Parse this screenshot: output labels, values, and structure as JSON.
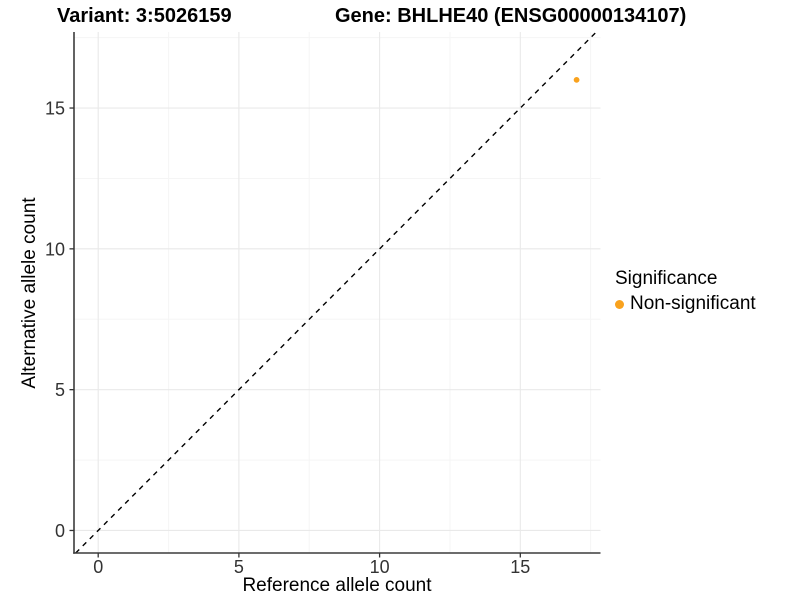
{
  "chart_data": {
    "type": "scatter",
    "title_left": "Variant: 3:5026159",
    "title_right": "Gene: BHLHE40 (ENSG00000134107)",
    "xlabel": "Reference allele count",
    "ylabel": "Alternative allele count",
    "xlim": [
      -0.86,
      17.85
    ],
    "ylim": [
      -0.8,
      17.7
    ],
    "x_ticks": [
      0,
      5,
      10,
      15
    ],
    "y_ticks": [
      0,
      5,
      10,
      15
    ],
    "x_minor_ticks": [
      2.5,
      7.5,
      12.5,
      17.5
    ],
    "y_minor_ticks": [
      2.5,
      7.5,
      12.5,
      17.5
    ],
    "grid": true,
    "reference_line": {
      "type": "identity",
      "style": "dashed",
      "color": "#000000"
    },
    "series": [
      {
        "name": "Non-significant",
        "color": "#F9A21E",
        "points": [
          {
            "x": 17,
            "y": 16
          }
        ]
      }
    ],
    "legend": {
      "title": "Significance",
      "position": "right",
      "items": [
        {
          "label": "Non-significant",
          "color": "#F9A21E"
        }
      ]
    },
    "colors": {
      "axis_line": "#3c3c3c",
      "tick_mark": "#333333",
      "tick_label": "#333333",
      "grid_major": "#e9e9e9",
      "grid_minor": "#f5f5f5",
      "background": "#ffffff"
    }
  }
}
